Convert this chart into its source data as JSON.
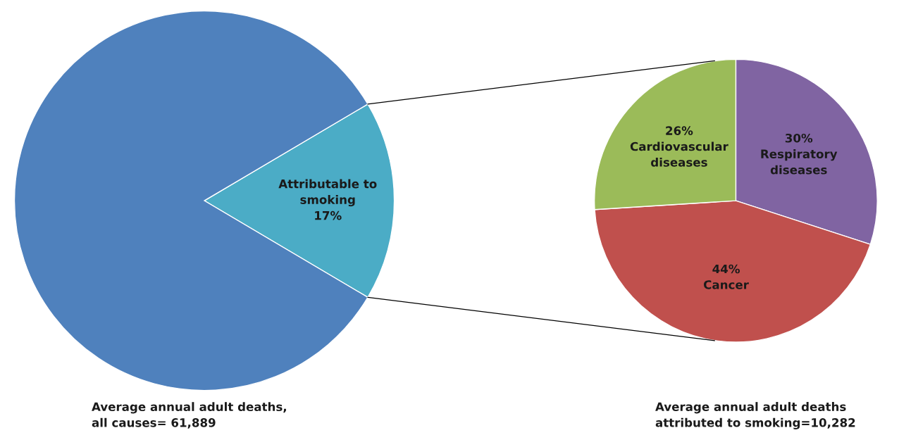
{
  "chart_data": [
    {
      "type": "pie",
      "categories": [
        "Attributable to\nsmoking",
        null
      ],
      "values": [
        17,
        83
      ],
      "colors": [
        "#4bacc6",
        "#4f81bd"
      ],
      "value_labels": [
        "17%",
        null
      ],
      "annotations": [
        "Average annual adult deaths,\nall causes= 61,889"
      ]
    },
    {
      "type": "pie",
      "categories": [
        "Respiratory\ndiseases",
        "Cancer",
        "Cardiovascular\ndiseases"
      ],
      "values": [
        30,
        44,
        26
      ],
      "colors": [
        "#8064a2",
        "#c0504d",
        "#9bbb59"
      ],
      "value_labels": [
        "30%",
        "44%",
        "26%"
      ],
      "annotations": [
        "Average annual adult deaths\nattributed to smoking=10,282"
      ]
    }
  ]
}
